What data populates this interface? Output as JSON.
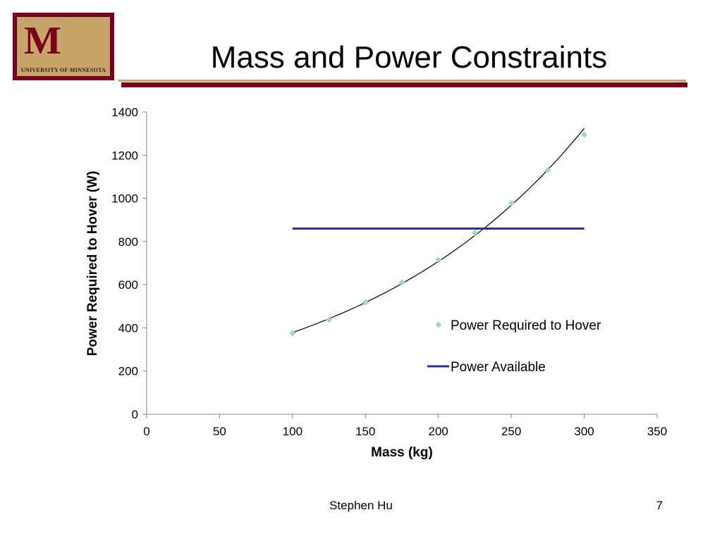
{
  "slide": {
    "title": "Mass and Power Constraints",
    "author": "Stephen Hu",
    "page_number": "7"
  },
  "logo": {
    "text": "UNIVERSITY OF MINNESOTA",
    "letter": "M",
    "colors": {
      "maroon": "#7a0019",
      "gold": "#c9a46a"
    }
  },
  "chart_data": {
    "type": "scatter",
    "xlabel": "Mass (kg)",
    "ylabel": "Power Required to Hover (W)",
    "xlim": [
      0,
      350
    ],
    "ylim": [
      0,
      1400
    ],
    "x_ticks": [
      0,
      50,
      100,
      150,
      200,
      250,
      300,
      350
    ],
    "y_ticks": [
      0,
      200,
      400,
      600,
      800,
      1000,
      1200,
      1400
    ],
    "grid": false,
    "legend_position": "right",
    "series": [
      {
        "name": "Power Required to Hover",
        "kind": "scatter",
        "marker": "diamond",
        "color": "#9fd4d8",
        "trendline": true,
        "trendline_color": "#000000",
        "x": [
          100,
          125,
          150,
          175,
          200,
          225,
          250,
          275,
          300
        ],
        "y": [
          375,
          437,
          518,
          610,
          715,
          840,
          978,
          1130,
          1295
        ]
      },
      {
        "name": "Power Available",
        "kind": "line",
        "color": "#2e3192",
        "x": [
          100,
          300
        ],
        "y": [
          860,
          860
        ]
      }
    ]
  }
}
